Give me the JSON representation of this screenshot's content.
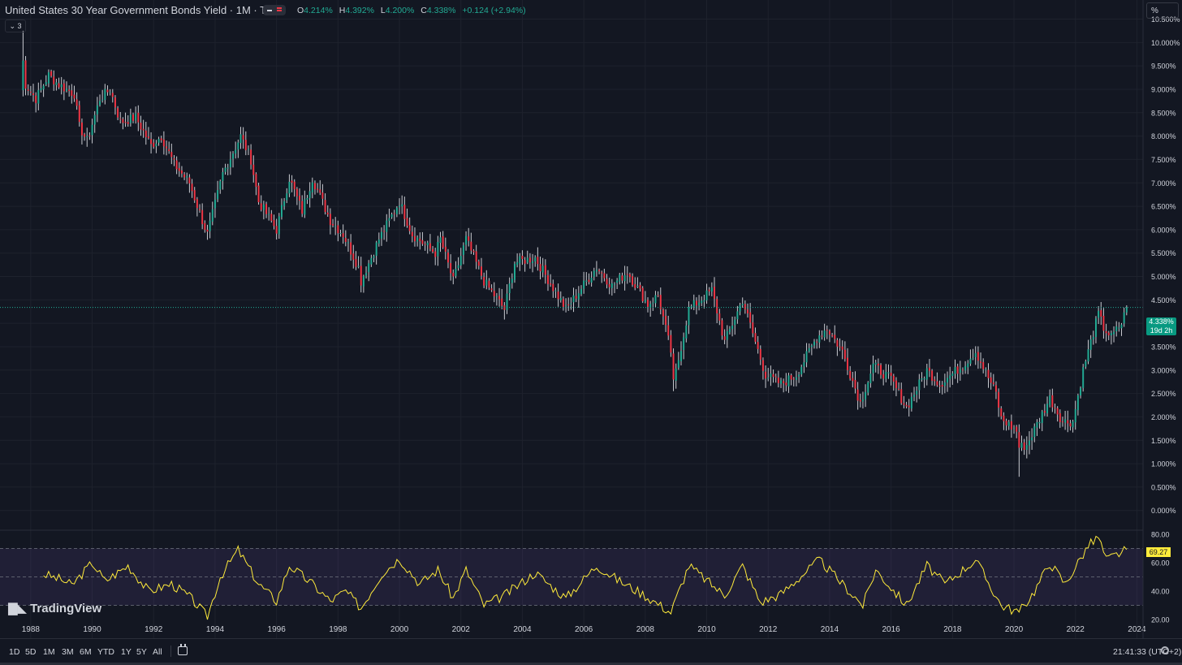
{
  "header": {
    "title": "United States 30 Year Government Bonds Yield · 1M · TVC",
    "ohlc": [
      {
        "label": "O",
        "value": "4.214%"
      },
      {
        "label": "H",
        "value": "4.392%"
      },
      {
        "label": "L",
        "value": "4.200%"
      },
      {
        "label": "C",
        "value": "4.338%"
      },
      {
        "label": "",
        "value": "+0.124 (+2.94%)"
      }
    ],
    "indicators_count": "3",
    "unit_button": "%"
  },
  "colors": {
    "background": "#131722",
    "up": "#22ab94",
    "down": "#f23645",
    "rsi_line": "#ffeb3b",
    "rsi_band": "#7e57c2",
    "grid": "#1e222d",
    "text": "#d1d4dc"
  },
  "price_tag": {
    "price": "4.338%",
    "countdown": "19d 2h"
  },
  "rsi_tag": "69.27",
  "branding": "TradingView",
  "bottom": {
    "timeframes": [
      "1D",
      "5D",
      "1M",
      "3M",
      "6M",
      "YTD",
      "1Y",
      "5Y",
      "All"
    ],
    "clock": "21:41:33 (UTC+2)"
  },
  "chart_data": [
    {
      "type": "candlestick",
      "interval": "1M",
      "y_unit": "%",
      "ylim": [
        -0.3,
        10.7
      ],
      "y_ticks": [
        0,
        0.5,
        1,
        1.5,
        2,
        2.5,
        3,
        3.5,
        4,
        4.5,
        5,
        5.5,
        6,
        6.5,
        7,
        7.5,
        8,
        8.5,
        9,
        9.5,
        10,
        10.5
      ],
      "y_tick_labels": [
        "0.000%",
        "0.500%",
        "1.000%",
        "1.500%",
        "2.000%",
        "2.500%",
        "3.000%",
        "3.500%",
        "4.000%",
        "4.500%",
        "5.000%",
        "5.500%",
        "6.000%",
        "6.500%",
        "7.000%",
        "7.500%",
        "8.000%",
        "8.500%",
        "9.000%",
        "9.500%",
        "10.000%",
        "10.500%"
      ],
      "x_range": [
        "1987-09",
        "2023-09"
      ],
      "x_ticks": [
        "1988",
        "1990",
        "1992",
        "1994",
        "1996",
        "1998",
        "2000",
        "2002",
        "2004",
        "2006",
        "2008",
        "2010",
        "2012",
        "2014",
        "2016",
        "2018",
        "2020",
        "2022",
        "2024"
      ],
      "last_price": 4.338,
      "close_points": [
        [
          "1987-09",
          9.0
        ],
        [
          "1987-10",
          9.6
        ],
        [
          "1987-11",
          9.1
        ],
        [
          "1988-03",
          8.8
        ],
        [
          "1988-08",
          9.3
        ],
        [
          "1988-12",
          9.1
        ],
        [
          "1989-06",
          8.9
        ],
        [
          "1989-08",
          8.2
        ],
        [
          "1989-11",
          7.9
        ],
        [
          "1990-04",
          8.8
        ],
        [
          "1990-08",
          9.0
        ],
        [
          "1990-12",
          8.3
        ],
        [
          "1991-06",
          8.4
        ],
        [
          "1991-12",
          7.8
        ],
        [
          "1992-04",
          8.0
        ],
        [
          "1992-09",
          7.4
        ],
        [
          "1993-03",
          7.0
        ],
        [
          "1993-08",
          6.2
        ],
        [
          "1993-10",
          5.9
        ],
        [
          "1994-04",
          7.2
        ],
        [
          "1994-11",
          8.0
        ],
        [
          "1995-03",
          7.5
        ],
        [
          "1995-06",
          6.6
        ],
        [
          "1996-01",
          6.0
        ],
        [
          "1996-06",
          7.1
        ],
        [
          "1996-11",
          6.4
        ],
        [
          "1997-03",
          7.1
        ],
        [
          "1997-10",
          6.2
        ],
        [
          "1998-03",
          5.9
        ],
        [
          "1998-09",
          5.2
        ],
        [
          "1998-10",
          4.9
        ],
        [
          "1999-05",
          5.8
        ],
        [
          "2000-01",
          6.6
        ],
        [
          "2000-06",
          5.9
        ],
        [
          "2001-03",
          5.5
        ],
        [
          "2001-05",
          5.8
        ],
        [
          "2001-10",
          4.9
        ],
        [
          "2002-03",
          5.8
        ],
        [
          "2002-10",
          4.9
        ],
        [
          "2003-06",
          4.3
        ],
        [
          "2003-10",
          5.3
        ],
        [
          "2004-06",
          5.4
        ],
        [
          "2005-06",
          4.3
        ],
        [
          "2006-06",
          5.2
        ],
        [
          "2006-12",
          4.8
        ],
        [
          "2007-06",
          5.1
        ],
        [
          "2008-02",
          4.4
        ],
        [
          "2008-06",
          4.6
        ],
        [
          "2008-11",
          3.4
        ],
        [
          "2008-12",
          2.7
        ],
        [
          "2009-06",
          4.3
        ],
        [
          "2010-03",
          4.7
        ],
        [
          "2010-08",
          3.6
        ],
        [
          "2011-03",
          4.5
        ],
        [
          "2011-08",
          3.6
        ],
        [
          "2011-12",
          2.9
        ],
        [
          "2012-06",
          2.7
        ],
        [
          "2012-12",
          2.9
        ],
        [
          "2013-08",
          3.7
        ],
        [
          "2013-12",
          3.9
        ],
        [
          "2014-06",
          3.4
        ],
        [
          "2015-01",
          2.3
        ],
        [
          "2015-06",
          3.1
        ],
        [
          "2016-01",
          2.8
        ],
        [
          "2016-07",
          2.2
        ],
        [
          "2017-03",
          3.0
        ],
        [
          "2017-08",
          2.7
        ],
        [
          "2018-05",
          3.1
        ],
        [
          "2018-10",
          3.4
        ],
        [
          "2019-06",
          2.5
        ],
        [
          "2019-08",
          1.96
        ],
        [
          "2020-02",
          1.7
        ],
        [
          "2020-03",
          1.35
        ],
        [
          "2020-06",
          1.4
        ],
        [
          "2021-03",
          2.4
        ],
        [
          "2021-08",
          1.9
        ],
        [
          "2021-12",
          1.9
        ],
        [
          "2022-04",
          3.0
        ],
        [
          "2022-10",
          4.2
        ],
        [
          "2022-12",
          3.9
        ],
        [
          "2023-03",
          3.7
        ],
        [
          "2023-07",
          4.0
        ],
        [
          "2023-09",
          4.338
        ]
      ],
      "spike_highs": [
        [
          "1987-10",
          10.25
        ],
        [
          "2008-12",
          2.55
        ],
        [
          "2020-03",
          0.72
        ]
      ]
    },
    {
      "type": "line",
      "name": "RSI",
      "ylim": [
        20,
        80
      ],
      "y_ticks": [
        20,
        40,
        60,
        80
      ],
      "y_tick_labels": [
        "20.00",
        "40.00",
        "60.00",
        "80.00"
      ],
      "bands": [
        30,
        50,
        70
      ],
      "last_value": 69.27,
      "points": [
        [
          "1988-06",
          52
        ],
        [
          "1989-01",
          48
        ],
        [
          "1989-05",
          44
        ],
        [
          "1990-01",
          60
        ],
        [
          "1990-06",
          47
        ],
        [
          "1991-03",
          58
        ],
        [
          "1991-11",
          40
        ],
        [
          "1992-08",
          45
        ],
        [
          "1993-03",
          36
        ],
        [
          "1993-10",
          22
        ],
        [
          "1994-03",
          50
        ],
        [
          "1994-10",
          69
        ],
        [
          "1995-06",
          45
        ],
        [
          "1996-01",
          33
        ],
        [
          "1996-06",
          58
        ],
        [
          "1997-03",
          45
        ],
        [
          "1997-10",
          33
        ],
        [
          "1998-04",
          40
        ],
        [
          "1998-10",
          28
        ],
        [
          "1999-06",
          52
        ],
        [
          "2000-01",
          63
        ],
        [
          "2000-09",
          45
        ],
        [
          "2001-04",
          55
        ],
        [
          "2001-10",
          35
        ],
        [
          "2002-03",
          55
        ],
        [
          "2002-10",
          30
        ],
        [
          "2003-06",
          37
        ],
        [
          "2004-06",
          53
        ],
        [
          "2005-06",
          35
        ],
        [
          "2006-06",
          58
        ],
        [
          "2007-03",
          47
        ],
        [
          "2007-12",
          38
        ],
        [
          "2008-11",
          25
        ],
        [
          "2009-06",
          58
        ],
        [
          "2010-08",
          37
        ],
        [
          "2011-03",
          58
        ],
        [
          "2011-10",
          32
        ],
        [
          "2012-06",
          38
        ],
        [
          "2013-09",
          62
        ],
        [
          "2014-06",
          45
        ],
        [
          "2015-02",
          30
        ],
        [
          "2015-07",
          55
        ],
        [
          "2016-07",
          30
        ],
        [
          "2017-03",
          58
        ],
        [
          "2017-10",
          45
        ],
        [
          "2018-10",
          62
        ],
        [
          "2019-08",
          30
        ],
        [
          "2020-03",
          25
        ],
        [
          "2020-09",
          40
        ],
        [
          "2021-03",
          60
        ],
        [
          "2021-09",
          45
        ],
        [
          "2022-06",
          72
        ],
        [
          "2022-10",
          78
        ],
        [
          "2023-01",
          62
        ],
        [
          "2023-09",
          69.27
        ]
      ]
    }
  ]
}
